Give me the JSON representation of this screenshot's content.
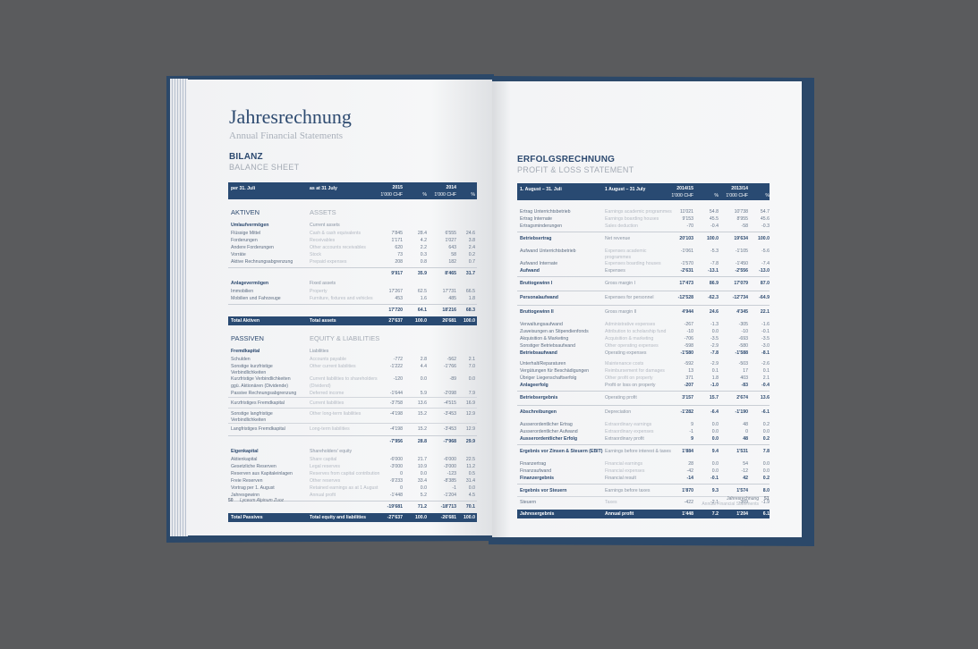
{
  "left": {
    "title": "Jahresrechnung",
    "subtitle": "Annual Financial Statements",
    "heading_de": "BILANZ",
    "heading_en": "BALANCE SHEET",
    "header": {
      "c1": "per 31. Juli",
      "c2": "as at 31 July",
      "y1": "2015",
      "y2": "2014",
      "unit1": "1'000 CHF",
      "pct1": "%",
      "unit2": "1'000 CHF",
      "pct2": "%"
    },
    "rows": [
      {
        "kind": "section",
        "de": "AKTIVEN",
        "en": "ASSETS"
      },
      {
        "kind": "group",
        "de": "Umlaufvermögen",
        "en": "Current assets"
      },
      {
        "kind": "item",
        "de": "Flüssige Mittel",
        "en": "Cash & cash equivalents",
        "v1": "7'845",
        "p1": "28.4",
        "v2": "6'555",
        "p2": "24.6"
      },
      {
        "kind": "item",
        "de": "Forderungen",
        "en": "Receivables",
        "v1": "1'171",
        "p1": "4.2",
        "v2": "1'027",
        "p2": "3.8"
      },
      {
        "kind": "item",
        "de": "Andere Forderungen",
        "en": "Other accounts receivables",
        "v1": "620",
        "p1": "2.2",
        "v2": "643",
        "p2": "2.4"
      },
      {
        "kind": "item",
        "de": "Vorräte",
        "en": "Stock",
        "v1": "73",
        "p1": "0.3",
        "v2": "58",
        "p2": "0.2"
      },
      {
        "kind": "item",
        "de": "Aktive Rechnungsabgrenzung",
        "en": "Prepaid expenses",
        "v1": "208",
        "p1": "0.8",
        "v2": "182",
        "p2": "0.7"
      },
      {
        "kind": "subtotal",
        "v1": "9'917",
        "p1": "35.9",
        "v2": "8'465",
        "p2": "31.7"
      },
      {
        "kind": "group",
        "de": "Anlagevermögen",
        "en": "Fixed assets"
      },
      {
        "kind": "item",
        "de": "Immobilien",
        "en": "Property",
        "v1": "17'267",
        "p1": "62.5",
        "v2": "17'731",
        "p2": "66.5"
      },
      {
        "kind": "item",
        "de": "Mobilien und Fahrzeuge",
        "en": "Furniture, fixtures and vehicles",
        "v1": "453",
        "p1": "1.6",
        "v2": "485",
        "p2": "1.8"
      },
      {
        "kind": "subtotal",
        "v1": "17'720",
        "p1": "64.1",
        "v2": "18'216",
        "p2": "68.3"
      },
      {
        "kind": "total",
        "de": "Total Aktiven",
        "en": "Total assets",
        "v1": "27'637",
        "p1": "100.0",
        "v2": "26'681",
        "p2": "100.0"
      },
      {
        "kind": "section",
        "de": "PASSIVEN",
        "en": "EQUITY & LIABILITIES"
      },
      {
        "kind": "group",
        "de": "Fremdkapital",
        "en": "Liabilities"
      },
      {
        "kind": "item",
        "de": "Schulden",
        "en": "Accounts payable",
        "v1": "-772",
        "p1": "2.8",
        "v2": "-562",
        "p2": "2.1"
      },
      {
        "kind": "item",
        "de": "Sonstige kurzfristige Verbindlichkeiten",
        "en": "Other current liabilities",
        "v1": "-1'222",
        "p1": "4.4",
        "v2": "-1'766",
        "p2": "7.0"
      },
      {
        "kind": "item",
        "de": "Kurzfristige Verbindlichkeiten",
        "en": "Current liabilities to shareholders",
        "v1": "-120",
        "p1": "0.0",
        "v2": "-89",
        "p2": "0.0"
      },
      {
        "kind": "item",
        "de": "ggü. Aktionären (Dividende)",
        "en": "(Dividend)"
      },
      {
        "kind": "item",
        "de": "Passive Rechnungsabgrenzung",
        "en": "Deferred income",
        "v1": "-1'644",
        "p1": "5.9",
        "v2": "-2'098",
        "p2": "7.9"
      },
      {
        "kind": "line",
        "de": "Kurzfristiges Fremdkapital",
        "en": "Current liabilities",
        "v1": "-3'758",
        "p1": "13.6",
        "v2": "-4'515",
        "p2": "16.9"
      },
      {
        "kind": "line",
        "de": "Sonstige langfristige Verbindlichkeiten",
        "en": "Other long-term liabilities",
        "v1": "-4'198",
        "p1": "15.2",
        "v2": "-3'453",
        "p2": "12.9"
      },
      {
        "kind": "line",
        "de": "Langfristiges Fremdkapital",
        "en": "Long-term liabilities",
        "v1": "-4'198",
        "p1": "15.2",
        "v2": "-3'453",
        "p2": "12.9"
      },
      {
        "kind": "subtotal",
        "v1": "-7'956",
        "p1": "28.8",
        "v2": "-7'968",
        "p2": "29.9"
      },
      {
        "kind": "group",
        "de": "Eigenkapital",
        "en": "Shareholders' equity"
      },
      {
        "kind": "item",
        "de": "Aktienkapital",
        "en": "Share capital",
        "v1": "-6'000",
        "p1": "21.7",
        "v2": "-6'000",
        "p2": "22.5"
      },
      {
        "kind": "item",
        "de": "Gesetzliche Reserven",
        "en": "Legal reserves",
        "v1": "-3'000",
        "p1": "10.9",
        "v2": "-3'000",
        "p2": "11.2"
      },
      {
        "kind": "item",
        "de": "Reserven aus Kapitaleinlagen",
        "en": "Reserves from capital contribution",
        "v1": "0",
        "p1": "0.0",
        "v2": "-123",
        "p2": "0.5"
      },
      {
        "kind": "item",
        "de": "Freie Reserven",
        "en": "Other reserves",
        "v1": "-9'233",
        "p1": "33.4",
        "v2": "-8'385",
        "p2": "31.4"
      },
      {
        "kind": "item",
        "de": "Vortrag per 1. August",
        "en": "Retained earnings as at 1 August",
        "v1": "0",
        "p1": "0.0",
        "v2": "-1",
        "p2": "0.0"
      },
      {
        "kind": "item",
        "de": "Jahresgewinn",
        "en": "Annual profit",
        "v1": "-1'448",
        "p1": "5.2",
        "v2": "-1'204",
        "p2": "4.5"
      },
      {
        "kind": "subtotal",
        "v1": "-19'681",
        "p1": "71.2",
        "v2": "-18'713",
        "p2": "70.1"
      },
      {
        "kind": "total",
        "de": "Total Passives",
        "en": "Total equity and liabilities",
        "v1": "-27'637",
        "p1": "100.0",
        "v2": "-26'681",
        "p2": "100.0"
      }
    ],
    "footer": {
      "page": "50",
      "name": "Lyceum Alpinum Zuoz"
    }
  },
  "right": {
    "heading_de": "ERFOLGSRECHNUNG",
    "heading_en": "PROFIT & LOSS STATEMENT",
    "header": {
      "c1": "1. August – 31. Juli",
      "c2": "1 August – 31 July",
      "y1": "2014/15",
      "y2": "2013/14",
      "unit1": "1'000 CHF",
      "pct1": "%",
      "unit2": "1'000 CHF",
      "pct2": "%"
    },
    "rows": [
      {
        "kind": "item first",
        "de": "Ertrag Unterrichtsbetrieb",
        "en": "Earnings academic programmes",
        "v1": "11'021",
        "p1": "54.8",
        "v2": "10'738",
        "p2": "54.7"
      },
      {
        "kind": "item",
        "de": "Ertrag Internate",
        "en": "Earnings boarding houses",
        "v1": "9'153",
        "p1": "45.5",
        "v2": "8'955",
        "p2": "45.6"
      },
      {
        "kind": "item",
        "de": "Ertragsminderungen",
        "en": "Sales deduction",
        "v1": "-70",
        "p1": "-0.4",
        "v2": "-58",
        "p2": "-0.3"
      },
      {
        "kind": "major",
        "de": "Betriebsertrag",
        "en": "Net revenue",
        "v1": "20'103",
        "p1": "100.0",
        "v2": "19'634",
        "p2": "100.0"
      },
      {
        "kind": "item gap",
        "de": "Aufwand Unterrichtsbetrieb",
        "en": "Expenses academic programmes",
        "v1": "-1'061",
        "p1": "-5.3",
        "v2": "-1'105",
        "p2": "-5.6"
      },
      {
        "kind": "item",
        "de": "Aufwand Internate",
        "en": "Expenses boarding houses",
        "v1": "-1'570",
        "p1": "-7.8",
        "v2": "-1'450",
        "p2": "-7.4"
      },
      {
        "kind": "item bold",
        "de": "Aufwand",
        "en": "Expenses",
        "v1": "-2'631",
        "p1": "-13.1",
        "v2": "-2'556",
        "p2": "-13.0"
      },
      {
        "kind": "major",
        "de": "Bruttogewinn I",
        "en": "Gross margin I",
        "v1": "17'473",
        "p1": "86.9",
        "v2": "17'079",
        "p2": "87.0"
      },
      {
        "kind": "major",
        "de": "Personalaufwand",
        "en": "Expenses for personnel",
        "v1": "-12'528",
        "p1": "-62.3",
        "v2": "-12'734",
        "p2": "-64.9"
      },
      {
        "kind": "major",
        "de": "Bruttogewinn II",
        "en": "Gross margin II",
        "v1": "4'944",
        "p1": "24.6",
        "v2": "4'345",
        "p2": "22.1"
      },
      {
        "kind": "item gap",
        "de": "Verwaltungsaufwand",
        "en": "Administrative expenses",
        "v1": "-267",
        "p1": "-1.3",
        "v2": "-305",
        "p2": "-1.6"
      },
      {
        "kind": "item",
        "de": "Zuweisungen an Stipendienfonds",
        "en": "Attribution to scholarship fund",
        "v1": "-10",
        "p1": "0.0",
        "v2": "-10",
        "p2": "-0.1"
      },
      {
        "kind": "item",
        "de": "Akquisition & Marketing",
        "en": "Acquisition & marketing",
        "v1": "-706",
        "p1": "-3.5",
        "v2": "-693",
        "p2": "-3.5"
      },
      {
        "kind": "item",
        "de": "Sonstiger Betriebsaufwand",
        "en": "Other operating expenses",
        "v1": "-598",
        "p1": "-2.9",
        "v2": "-580",
        "p2": "-3.0"
      },
      {
        "kind": "item bold",
        "de": "Betriebsaufwand",
        "en": "Operating expenses",
        "v1": "-1'580",
        "p1": "-7.8",
        "v2": "-1'588",
        "p2": "-8.1"
      },
      {
        "kind": "item gap",
        "de": "Unterhalt/Reparaturen",
        "en": "Maintenance costs",
        "v1": "-592",
        "p1": "-2.9",
        "v2": "-503",
        "p2": "-2.6"
      },
      {
        "kind": "item",
        "de": "Vergütungen für Beschädigungen",
        "en": "Reimbursement for damages",
        "v1": "13",
        "p1": "0.1",
        "v2": "17",
        "p2": "0.1"
      },
      {
        "kind": "item",
        "de": "Übriger Liegenschaftserfolg",
        "en": "Other profit on property",
        "v1": "371",
        "p1": "1.8",
        "v2": "403",
        "p2": "2.1"
      },
      {
        "kind": "item bold",
        "de": "Anlageerfolg",
        "en": "Profit or loss on property",
        "v1": "-207",
        "p1": "-1.0",
        "v2": "-83",
        "p2": "-0.4"
      },
      {
        "kind": "major",
        "de": "Betriebsergebnis",
        "en": "Operating profit",
        "v1": "3'157",
        "p1": "15.7",
        "v2": "2'674",
        "p2": "13.6"
      },
      {
        "kind": "major",
        "de": "Abschreibungen",
        "en": "Depreciation",
        "v1": "-1'282",
        "p1": "-6.4",
        "v2": "-1'190",
        "p2": "-6.1"
      },
      {
        "kind": "item gap",
        "de": "Ausserordentlicher Ertrag",
        "en": "Extraordinary earnings",
        "v1": "9",
        "p1": "0.0",
        "v2": "48",
        "p2": "0.2"
      },
      {
        "kind": "item",
        "de": "Ausserordentlicher Aufwand",
        "en": "Extraordinary expenses",
        "v1": "-1",
        "p1": "0.0",
        "v2": "0",
        "p2": "0.0"
      },
      {
        "kind": "item bold",
        "de": "Ausserordentlicher Erfolg",
        "en": "Extraordinary profit",
        "v1": "9",
        "p1": "0.0",
        "v2": "48",
        "p2": "0.2"
      },
      {
        "kind": "major",
        "de": "Ergebnis vor Zinsen & Steuern (EBIT)",
        "en": "Earnings before interest & taxes",
        "v1": "1'884",
        "p1": "9.4",
        "v2": "1'531",
        "p2": "7.8"
      },
      {
        "kind": "item gap",
        "de": "Finanzertrag",
        "en": "Financial earnings",
        "v1": "28",
        "p1": "0.0",
        "v2": "54",
        "p2": "0.0"
      },
      {
        "kind": "item",
        "de": "Finanzaufwand",
        "en": "Financial expenses",
        "v1": "-42",
        "p1": "0.0",
        "v2": "-12",
        "p2": "0.0"
      },
      {
        "kind": "item bold",
        "de": "Finanzergebnis",
        "en": "Financial result",
        "v1": "-14",
        "p1": "-0.1",
        "v2": "42",
        "p2": "0.2"
      },
      {
        "kind": "major",
        "de": "Ergebnis vor Steuern",
        "en": "Earnings before taxes",
        "v1": "1'870",
        "p1": "9.3",
        "v2": "1'574",
        "p2": "8.0"
      },
      {
        "kind": "line",
        "de": "Steuern",
        "en": "Taxes",
        "v1": "-422",
        "p1": "-2.1",
        "v2": "-369",
        "p2": "-1.9"
      },
      {
        "kind": "total",
        "de": "Jahresergebnis",
        "en": "Annual profit",
        "v1": "1'448",
        "p1": "7.2",
        "v2": "1'204",
        "p2": "6.1"
      }
    ],
    "footer": {
      "page": "51",
      "section_de": "Jahresrechnung",
      "section_en": "Annual Financial Statements"
    }
  },
  "colors": {
    "brand_blue": "#294a72",
    "background": "#5a5b5d"
  }
}
